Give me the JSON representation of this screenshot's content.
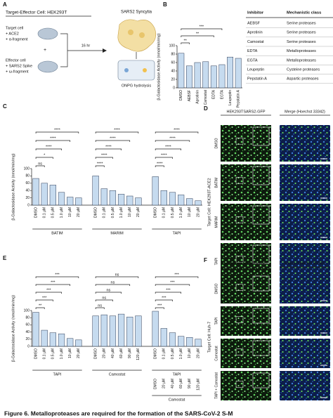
{
  "panel_a": {
    "label": "A",
    "title": "Target-Effector Cell: HEK293T",
    "result": "SARS2 Syncytia",
    "target": [
      "Target cell",
      "+ ACE2",
      "+ α-fragment"
    ],
    "plus": "+",
    "effector": [
      "Effector cell",
      "+ SARS2 Spike",
      "+ ω-fragment"
    ],
    "time": "16 hr",
    "assay": "ONPG hydrolysis"
  },
  "chart_data": [
    {
      "type": "bar",
      "panel": "B",
      "ylabel": "β-Galactosidase Activity (nmol/min/mg)",
      "ylim": [
        0,
        100
      ],
      "yticks": [
        0,
        20,
        40,
        60,
        80,
        100
      ],
      "color": "#c6dbef",
      "groups": [
        {
          "categories": [
            "DMSO",
            "AEBSF",
            "Aprotinin",
            "Camostat",
            "EDTA",
            "EGTA",
            "Leupeptin",
            "Pepstatin A"
          ],
          "values": [
            82,
            52,
            60,
            62,
            52,
            55,
            73,
            70
          ],
          "significance": [
            {
              "category": "AEBSF",
              "label": "**"
            },
            {
              "category": "EDTA",
              "label": "**"
            },
            {
              "category": "EGTA",
              "label": "***"
            }
          ]
        }
      ]
    },
    {
      "type": "bar",
      "panel": "C",
      "ylabel": "β-Galactosidase Activity (nmol/min/mg)",
      "ylim": [
        0,
        100
      ],
      "yticks": [
        0,
        20,
        40,
        60,
        80,
        100
      ],
      "color": "#c6dbef",
      "groups": [
        {
          "name": "BATIM",
          "categories": [
            "DMSO",
            "0.1 µM",
            "0.5 µM",
            "1.0 µM",
            "10 µM",
            "20 µM"
          ],
          "values": [
            73,
            60,
            55,
            35,
            22,
            20
          ],
          "significance": [
            {
              "category": "0.1 µM",
              "label": "ns"
            },
            {
              "category": "0.5 µM",
              "label": "*"
            },
            {
              "category": "1.0 µM",
              "label": "****"
            },
            {
              "category": "10 µM",
              "label": "****"
            },
            {
              "category": "20 µM",
              "label": "****"
            }
          ]
        },
        {
          "name": "MARIM",
          "categories": [
            "DMSO",
            "0.1 µM",
            "0.5 µM",
            "1.0 µM",
            "10 µM",
            "20 µM"
          ],
          "values": [
            80,
            45,
            40,
            30,
            25,
            20
          ],
          "significance": [
            {
              "category": "0.1 µM",
              "label": "****"
            },
            {
              "category": "0.5 µM",
              "label": "****"
            },
            {
              "category": "1.0 µM",
              "label": "****"
            },
            {
              "category": "10 µM",
              "label": "****"
            },
            {
              "category": "20 µM",
              "label": "****"
            }
          ]
        },
        {
          "name": "TAPI",
          "categories": [
            "DMSO",
            "0.1 µM",
            "0.5 µM",
            "1.0 µM",
            "10 µM",
            "20 µM"
          ],
          "values": [
            78,
            40,
            35,
            28,
            18,
            12
          ],
          "significance": [
            {
              "category": "0.1 µM",
              "label": "****"
            },
            {
              "category": "0.5 µM",
              "label": "****"
            },
            {
              "category": "1.0 µM",
              "label": "****"
            },
            {
              "category": "10 µM",
              "label": "****"
            },
            {
              "category": "20 µM",
              "label": "****"
            }
          ]
        }
      ]
    },
    {
      "type": "bar",
      "panel": "E",
      "ylabel": "β-Galactosidase Activity (nmol/min/mg)",
      "ylim": [
        0,
        100
      ],
      "yticks": [
        0,
        20,
        40,
        60,
        80,
        100
      ],
      "color": "#c6dbef",
      "groups": [
        {
          "name": "TAPI",
          "categories": [
            "DMSO",
            "0.1 µM",
            "0.5 µM",
            "1.0 µM",
            "10 µM",
            "20 µM"
          ],
          "values": [
            95,
            45,
            38,
            35,
            22,
            18
          ],
          "significance": [
            {
              "category": "0.1 µM",
              "label": "**"
            },
            {
              "category": "0.5 µM",
              "label": "***"
            },
            {
              "category": "1.0 µM",
              "label": "***"
            },
            {
              "category": "10 µM",
              "label": "***"
            },
            {
              "category": "20 µM",
              "label": "***"
            }
          ]
        },
        {
          "name": "Camostat",
          "categories": [
            "DMSO",
            "20 µM",
            "40 µM",
            "60 µM",
            "90 µM",
            "120 µM"
          ],
          "values": [
            85,
            88,
            85,
            90,
            82,
            85
          ],
          "significance": [
            {
              "category": "20 µM",
              "label": "ns"
            },
            {
              "category": "40 µM",
              "label": "ns"
            },
            {
              "category": "60 µM",
              "label": "ns"
            },
            {
              "category": "90 µM",
              "label": "ns"
            },
            {
              "category": "120 µM",
              "label": "ns"
            }
          ]
        },
        {
          "name": "TAPI",
          "categories": [
            "DMSO",
            "0.1 µM",
            "0.5 µM",
            "1.0 µM",
            "10 µM",
            "20 µM"
          ],
          "values": [
            98,
            50,
            38,
            28,
            25,
            20
          ],
          "subname": "Camostat",
          "subcategories": [
            "DMSO",
            "20 µM",
            "40 µM",
            "60 µM",
            "90 µM",
            "120 µM"
          ],
          "significance": [
            {
              "category": "0.1 µM",
              "label": "***"
            },
            {
              "category": "0.5 µM",
              "label": "***"
            },
            {
              "category": "1.0 µM",
              "label": "***"
            },
            {
              "category": "10 µM",
              "label": "***"
            },
            {
              "category": "20 µM",
              "label": "***"
            }
          ]
        }
      ]
    }
  ],
  "table": {
    "header": [
      "Inhibitor",
      "Mechanistic class"
    ],
    "rows": [
      [
        "AEBSF",
        "Serine proteases"
      ],
      [
        "Aprotinin",
        "Serine proteases"
      ],
      [
        "Camostat",
        "Serine proteases"
      ],
      [
        "EDTA",
        "Metalloproteases"
      ],
      [
        "EGTA",
        "Metalloproteases"
      ],
      [
        "Leupeptin",
        "Cysteine proteases"
      ],
      [
        "Pepstatin A",
        "Aspartic proteases"
      ]
    ]
  },
  "panel_d": {
    "label": "D",
    "columns": [
      "HEK293TSARS2-GFP",
      "Merge (Hoechst 33342)"
    ],
    "side": "Target Cell: HEK293T-ACE2",
    "rows": [
      "DMSO",
      "BATIM",
      "MARIM",
      "TAPI"
    ]
  },
  "panel_f": {
    "label": "F",
    "columns": [
      "HEK293TSARS2-GFP",
      "Merge (Hoechst 33342)"
    ],
    "side": "Target Cell: Huh-7",
    "rows": [
      "DMSO",
      "TAPI",
      "Camostat",
      "TAPI + Camostat"
    ]
  },
  "caption": "Figure 6. Metalloproteases are required for the formation of the SARS-CoV-2 S-M"
}
